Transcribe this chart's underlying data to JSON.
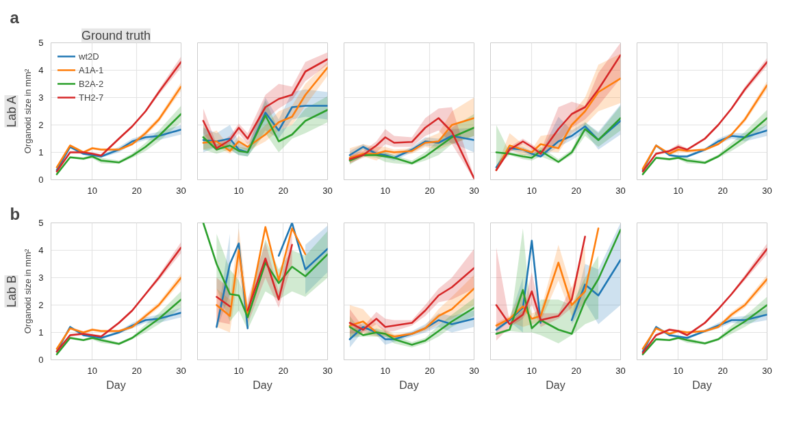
{
  "chart_data": [
    {
      "type": "line",
      "title": "Ground truth",
      "ylabel": "Organoid size in mm²",
      "annotations": [
        "a",
        "Lab A"
      ],
      "legend": "top left",
      "grid": true,
      "xlim": [
        0.7,
        30
      ],
      "ylim": [
        0,
        5
      ],
      "xticks": [
        10,
        20,
        30
      ],
      "yticks": [
        0,
        1,
        2,
        3,
        4,
        5
      ],
      "x": [
        2,
        5,
        8,
        10,
        12,
        16,
        19,
        22,
        25,
        30
      ],
      "series": [
        {
          "name": "wt2D",
          "color": "#1f77b4",
          "values": [
            0.35,
            1.2,
            0.95,
            0.9,
            0.85,
            1.1,
            1.4,
            1.55,
            1.6,
            1.83
          ],
          "lower": [
            0.3,
            1.15,
            0.9,
            0.85,
            0.8,
            1.0,
            1.3,
            1.45,
            1.45,
            1.65
          ],
          "upper": [
            0.4,
            1.25,
            1.0,
            0.95,
            0.9,
            1.2,
            1.5,
            1.65,
            1.75,
            2.0
          ]
        },
        {
          "name": "A1A-1",
          "color": "#ff7f0e",
          "values": [
            0.45,
            1.25,
            1.0,
            1.15,
            1.1,
            1.1,
            1.3,
            1.7,
            2.2,
            3.4
          ],
          "lower": [
            0.4,
            1.2,
            0.95,
            1.1,
            1.05,
            1.05,
            1.25,
            1.6,
            2.1,
            3.25
          ],
          "upper": [
            0.5,
            1.3,
            1.05,
            1.2,
            1.15,
            1.15,
            1.35,
            1.8,
            2.3,
            3.55
          ]
        },
        {
          "name": "B2A-2",
          "color": "#2ca02c",
          "values": [
            0.2,
            0.82,
            0.77,
            0.85,
            0.7,
            0.63,
            0.88,
            1.2,
            1.6,
            2.4
          ],
          "lower": [
            0.15,
            0.78,
            0.72,
            0.78,
            0.6,
            0.58,
            0.8,
            1.05,
            1.4,
            2.1
          ],
          "upper": [
            0.25,
            0.86,
            0.82,
            0.92,
            0.8,
            0.7,
            0.96,
            1.35,
            1.8,
            2.7
          ]
        },
        {
          "name": "TH2-7",
          "color": "#d62728",
          "values": [
            0.3,
            1.0,
            1.0,
            0.95,
            0.88,
            1.5,
            1.95,
            2.5,
            3.2,
            4.3
          ],
          "lower": [
            0.25,
            0.95,
            0.95,
            0.9,
            0.83,
            1.45,
            1.9,
            2.45,
            3.1,
            4.1
          ],
          "upper": [
            0.35,
            1.05,
            1.05,
            1.0,
            0.93,
            1.55,
            2.0,
            2.55,
            3.3,
            4.5
          ]
        }
      ]
    },
    {
      "type": "line",
      "grid": true,
      "tick_labels": "x",
      "xlim": [
        0.7,
        30
      ],
      "ylim": [
        0,
        5
      ],
      "xticks": [
        10,
        20,
        30
      ],
      "yticks": [
        0,
        1,
        2,
        3,
        4,
        5
      ],
      "x": [
        2,
        5,
        8,
        10,
        12,
        16,
        19,
        22,
        25,
        30
      ],
      "series": [
        {
          "color": "#1f77b4",
          "values": [
            1.45,
            1.4,
            1.5,
            1.1,
            1.0,
            2.45,
            1.8,
            2.65,
            2.7,
            2.7
          ],
          "lower": [
            1.0,
            1.2,
            1.1,
            0.9,
            0.85,
            1.8,
            1.5,
            2.2,
            2.3,
            2.2
          ],
          "upper": [
            1.9,
            1.7,
            2.0,
            1.4,
            1.2,
            3.0,
            2.2,
            3.2,
            3.3,
            3.2
          ]
        },
        {
          "color": "#ff7f0e",
          "values": [
            1.35,
            1.4,
            1.05,
            1.4,
            1.2,
            1.65,
            2.1,
            2.3,
            3.1,
            4.1
          ],
          "lower": [
            1.1,
            1.2,
            0.95,
            1.2,
            1.05,
            1.4,
            1.8,
            2.0,
            2.7,
            3.8
          ],
          "upper": [
            1.6,
            1.8,
            1.2,
            1.6,
            1.35,
            2.0,
            2.5,
            2.7,
            3.5,
            4.3
          ]
        },
        {
          "color": "#2ca02c",
          "values": [
            1.55,
            1.1,
            1.25,
            1.05,
            1.0,
            2.35,
            1.4,
            1.65,
            2.15,
            2.55
          ],
          "lower": [
            1.1,
            0.95,
            1.1,
            0.9,
            0.85,
            1.7,
            1.0,
            1.5,
            1.7,
            2.1
          ],
          "upper": [
            2.0,
            1.3,
            1.4,
            1.2,
            1.15,
            2.9,
            1.8,
            2.0,
            2.6,
            3.05
          ]
        },
        {
          "color": "#d62728",
          "values": [
            2.15,
            1.15,
            1.45,
            1.9,
            1.5,
            2.65,
            2.95,
            3.1,
            3.95,
            4.4
          ],
          "lower": [
            1.7,
            1.05,
            1.3,
            1.7,
            1.3,
            2.2,
            2.6,
            2.9,
            3.6,
            4.2
          ],
          "upper": [
            2.6,
            1.3,
            1.6,
            2.05,
            1.7,
            3.1,
            3.5,
            3.4,
            4.3,
            4.65
          ]
        }
      ]
    },
    {
      "type": "line",
      "grid": true,
      "tick_labels": "x",
      "xlim": [
        0.7,
        30
      ],
      "ylim": [
        0,
        5
      ],
      "xticks": [
        10,
        20,
        30
      ],
      "yticks": [
        0,
        1,
        2,
        3,
        4,
        5
      ],
      "x": [
        2,
        5,
        8,
        10,
        12,
        16,
        19,
        22,
        25,
        30
      ],
      "series": [
        {
          "color": "#1f77b4",
          "values": [
            0.9,
            1.2,
            0.95,
            0.9,
            0.8,
            1.1,
            1.4,
            1.35,
            1.6,
            1.45
          ],
          "lower": [
            0.7,
            1.1,
            0.85,
            0.8,
            0.7,
            1.0,
            1.25,
            1.2,
            1.35,
            1.0
          ],
          "upper": [
            1.05,
            1.3,
            1.05,
            1.0,
            0.9,
            1.2,
            1.55,
            1.5,
            1.85,
            1.9
          ]
        },
        {
          "color": "#ff7f0e",
          "values": [
            0.8,
            0.95,
            0.95,
            1.05,
            1.0,
            1.05,
            1.35,
            1.4,
            2.0,
            2.25
          ],
          "lower": [
            0.6,
            0.85,
            0.7,
            0.9,
            0.9,
            0.95,
            1.2,
            1.1,
            1.3,
            1.6
          ],
          "upper": [
            1.15,
            1.3,
            1.2,
            1.2,
            1.1,
            1.15,
            1.5,
            1.7,
            2.5,
            3.0
          ]
        },
        {
          "color": "#2ca02c",
          "values": [
            0.7,
            0.9,
            0.9,
            0.85,
            0.8,
            0.6,
            0.85,
            1.2,
            1.55,
            1.9
          ],
          "lower": [
            0.55,
            0.85,
            0.8,
            0.65,
            0.6,
            0.55,
            0.7,
            0.9,
            1.3,
            1.6
          ],
          "upper": [
            0.85,
            0.95,
            1.0,
            1.0,
            0.9,
            0.7,
            1.0,
            1.45,
            1.9,
            2.4
          ]
        },
        {
          "color": "#d62728",
          "values": [
            0.75,
            0.9,
            1.25,
            1.55,
            1.35,
            1.38,
            1.9,
            2.25,
            1.75,
            0.05
          ],
          "lower": [
            0.6,
            0.8,
            1.0,
            1.3,
            1.2,
            1.2,
            1.6,
            1.8,
            1.3,
            0.0
          ],
          "upper": [
            0.9,
            1.05,
            1.4,
            1.85,
            1.6,
            1.55,
            2.25,
            2.6,
            2.65,
            0.1
          ]
        }
      ]
    },
    {
      "type": "line",
      "grid": true,
      "tick_labels": "x",
      "xlim": [
        0.7,
        30
      ],
      "ylim": [
        0,
        5
      ],
      "xticks": [
        10,
        20,
        30
      ],
      "yticks": [
        0,
        1,
        2,
        3,
        4,
        5
      ],
      "x": [
        2,
        5,
        8,
        10,
        12,
        16,
        19,
        22,
        25,
        30
      ],
      "series": [
        {
          "color": "#1f77b4",
          "values": [
            0.45,
            1.15,
            1.1,
            0.95,
            0.85,
            1.4,
            1.6,
            1.95,
            1.45,
            2.15
          ],
          "lower": [
            0.4,
            1.05,
            1.0,
            0.85,
            0.8,
            1.2,
            1.45,
            1.75,
            1.1,
            1.65
          ],
          "upper": [
            0.5,
            1.25,
            1.2,
            1.05,
            0.95,
            2.3,
            1.8,
            2.1,
            1.75,
            2.75
          ]
        },
        {
          "color": "#ff7f0e",
          "values": [
            0.35,
            1.25,
            1.1,
            1.0,
            1.3,
            1.15,
            2.0,
            2.5,
            3.2,
            3.7
          ],
          "lower": [
            0.3,
            1.1,
            0.9,
            0.9,
            1.05,
            1.0,
            1.7,
            2.0,
            2.5,
            2.8
          ],
          "upper": [
            0.45,
            1.7,
            1.3,
            1.1,
            1.6,
            1.7,
            2.4,
            3.0,
            4.2,
            4.6
          ]
        },
        {
          "color": "#2ca02c",
          "values": [
            1.0,
            0.95,
            0.85,
            0.8,
            1.05,
            0.65,
            1.0,
            1.85,
            1.45,
            2.25
          ],
          "lower": [
            0.5,
            0.9,
            0.75,
            0.7,
            0.85,
            0.6,
            0.9,
            1.6,
            1.2,
            1.8
          ],
          "upper": [
            2.0,
            1.0,
            0.95,
            0.9,
            1.2,
            0.75,
            1.1,
            2.1,
            1.7,
            2.7
          ]
        },
        {
          "color": "#d62728",
          "values": [
            0.35,
            1.1,
            1.4,
            1.2,
            0.95,
            1.85,
            2.4,
            2.65,
            3.3,
            4.55
          ],
          "lower": [
            0.3,
            1.0,
            1.3,
            1.1,
            0.85,
            1.4,
            1.9,
            2.2,
            2.7,
            3.7
          ],
          "upper": [
            0.4,
            1.2,
            1.5,
            1.3,
            1.05,
            2.65,
            2.85,
            2.7,
            3.9,
            5.0
          ]
        }
      ]
    },
    {
      "type": "line",
      "grid": true,
      "tick_labels": "x",
      "xlim": [
        0.7,
        30
      ],
      "ylim": [
        0,
        5
      ],
      "xticks": [
        10,
        20,
        30
      ],
      "yticks": [
        0,
        1,
        2,
        3,
        4,
        5
      ],
      "x": [
        2,
        5,
        8,
        10,
        12,
        16,
        19,
        22,
        25,
        30
      ],
      "series": [
        {
          "color": "#1f77b4",
          "values": [
            0.35,
            1.25,
            0.9,
            0.85,
            0.85,
            1.1,
            1.4,
            1.6,
            1.55,
            1.8
          ],
          "lower": [
            0.3,
            1.2,
            0.85,
            0.8,
            0.8,
            1.05,
            1.3,
            1.5,
            1.4,
            1.6
          ],
          "upper": [
            0.4,
            1.3,
            0.95,
            0.9,
            0.9,
            1.15,
            1.5,
            1.7,
            1.7,
            2.0
          ]
        },
        {
          "color": "#ff7f0e",
          "values": [
            0.4,
            1.25,
            0.95,
            1.1,
            1.05,
            1.1,
            1.3,
            1.65,
            2.2,
            3.45
          ],
          "lower": [
            0.35,
            1.2,
            0.9,
            1.0,
            1.0,
            1.05,
            1.25,
            1.6,
            2.1,
            3.3
          ],
          "upper": [
            0.45,
            1.3,
            1.0,
            1.2,
            1.1,
            1.15,
            1.35,
            1.7,
            2.3,
            3.6
          ]
        },
        {
          "color": "#2ca02c",
          "values": [
            0.2,
            0.8,
            0.75,
            0.8,
            0.7,
            0.62,
            0.85,
            1.2,
            1.55,
            2.25
          ],
          "lower": [
            0.15,
            0.75,
            0.7,
            0.75,
            0.6,
            0.57,
            0.8,
            1.05,
            1.35,
            2.0
          ],
          "upper": [
            0.25,
            0.85,
            0.8,
            0.85,
            0.8,
            0.68,
            0.92,
            1.35,
            1.75,
            2.55
          ]
        },
        {
          "color": "#d62728",
          "values": [
            0.3,
            0.95,
            1.05,
            1.2,
            1.1,
            1.5,
            2.0,
            2.6,
            3.3,
            4.3
          ],
          "lower": [
            0.25,
            0.9,
            1.0,
            1.1,
            1.05,
            1.45,
            1.95,
            2.55,
            3.2,
            4.15
          ],
          "upper": [
            0.35,
            1.0,
            1.1,
            1.3,
            1.15,
            1.55,
            2.05,
            2.65,
            3.4,
            4.45
          ]
        }
      ]
    },
    {
      "type": "line",
      "xlabel": "Day",
      "ylabel": "Organoid size in mm²",
      "annotations": [
        "b",
        "Lab B"
      ],
      "grid": true,
      "xlim": [
        0.7,
        30
      ],
      "ylim": [
        0,
        5
      ],
      "xticks": [
        10,
        20,
        30
      ],
      "yticks": [
        0,
        1,
        2,
        3,
        4,
        5
      ],
      "x": [
        2,
        5,
        8,
        10,
        12,
        16,
        19,
        22,
        25,
        30
      ],
      "series": [
        {
          "color": "#1f77b4",
          "values": [
            0.3,
            1.2,
            0.9,
            0.85,
            0.8,
            1.0,
            1.25,
            1.45,
            1.5,
            1.72
          ],
          "lower": [
            0.25,
            1.15,
            0.85,
            0.8,
            0.75,
            0.95,
            1.15,
            1.35,
            1.35,
            1.55
          ],
          "upper": [
            0.35,
            1.25,
            0.95,
            0.9,
            0.85,
            1.05,
            1.35,
            1.55,
            1.65,
            1.9
          ]
        },
        {
          "color": "#ff7f0e",
          "values": [
            0.4,
            1.15,
            1.0,
            1.1,
            1.05,
            1.05,
            1.2,
            1.6,
            2.0,
            3.0
          ],
          "lower": [
            0.35,
            1.1,
            0.95,
            1.05,
            1.0,
            1.0,
            1.15,
            1.5,
            1.9,
            2.85
          ],
          "upper": [
            0.45,
            1.2,
            1.05,
            1.15,
            1.1,
            1.1,
            1.25,
            1.7,
            2.1,
            3.15
          ]
        },
        {
          "color": "#2ca02c",
          "values": [
            0.2,
            0.8,
            0.72,
            0.8,
            0.72,
            0.58,
            0.8,
            1.15,
            1.5,
            2.2
          ],
          "lower": [
            0.15,
            0.75,
            0.68,
            0.74,
            0.62,
            0.54,
            0.75,
            1.0,
            1.3,
            1.9
          ],
          "upper": [
            0.25,
            0.85,
            0.76,
            0.86,
            0.8,
            0.64,
            0.85,
            1.3,
            1.7,
            2.5
          ]
        },
        {
          "color": "#d62728",
          "values": [
            0.3,
            0.9,
            0.95,
            0.9,
            0.85,
            1.35,
            1.8,
            2.4,
            3.0,
            4.1
          ],
          "lower": [
            0.25,
            0.85,
            0.9,
            0.85,
            0.8,
            1.3,
            1.75,
            2.35,
            2.9,
            3.9
          ],
          "upper": [
            0.35,
            0.95,
            1.0,
            0.95,
            0.9,
            1.4,
            1.85,
            2.45,
            3.1,
            4.3
          ]
        }
      ]
    },
    {
      "type": "line",
      "xlabel": "Day",
      "grid": true,
      "tick_labels": "x",
      "xlim": [
        0.7,
        30
      ],
      "ylim": [
        0,
        5
      ],
      "xticks": [
        10,
        20,
        30
      ],
      "yticks": [
        0,
        1,
        2,
        3,
        4,
        5
      ],
      "x": [
        2,
        5,
        8,
        10,
        12,
        16,
        19,
        22,
        25,
        30
      ],
      "series": [
        {
          "color": "#1f77b4",
          "values": [
            null,
            1.2,
            3.5,
            4.25,
            1.15,
            null,
            3.8,
            5.0,
            3.3,
            4.05
          ],
          "lower": [
            null,
            1.1,
            2.4,
            null,
            null,
            null,
            null,
            null,
            2.4,
            3.2
          ],
          "upper": [
            null,
            1.3,
            4.6,
            null,
            null,
            null,
            null,
            null,
            4.2,
            4.9
          ]
        },
        {
          "color": "#ff7f0e",
          "values": [
            null,
            2.0,
            1.6,
            4.0,
            1.6,
            4.85,
            2.9,
            4.8,
            3.85,
            null
          ],
          "lower": [
            null,
            1.2,
            1.0,
            3.2,
            1.2,
            null,
            null,
            null,
            null,
            null
          ],
          "upper": [
            null,
            2.6,
            2.2,
            4.8,
            2.0,
            null,
            null,
            null,
            null,
            null
          ]
        },
        {
          "color": "#2ca02c",
          "values": [
            5.0,
            3.5,
            2.4,
            2.35,
            1.55,
            3.55,
            2.8,
            3.4,
            3.05,
            3.85
          ],
          "lower": [
            null,
            2.6,
            1.4,
            1.8,
            1.1,
            2.5,
            2.2,
            2.5,
            2.3,
            3.0
          ],
          "upper": [
            null,
            4.6,
            3.3,
            2.9,
            2.0,
            4.4,
            3.3,
            4.0,
            3.8,
            4.7
          ]
        },
        {
          "color": "#d62728",
          "values": [
            null,
            2.3,
            1.95,
            null,
            1.8,
            3.7,
            2.2,
            4.2,
            null,
            null
          ],
          "lower": [
            null,
            1.4,
            1.3,
            null,
            1.3,
            3.0,
            1.9,
            3.5,
            null,
            null
          ],
          "upper": [
            null,
            3.0,
            2.6,
            null,
            2.2,
            4.3,
            2.5,
            4.9,
            null,
            null
          ]
        }
      ]
    },
    {
      "type": "line",
      "xlabel": "Day",
      "grid": true,
      "tick_labels": "x",
      "xlim": [
        0.7,
        30
      ],
      "ylim": [
        0,
        5
      ],
      "xticks": [
        10,
        20,
        30
      ],
      "yticks": [
        0,
        1,
        2,
        3,
        4,
        5
      ],
      "x": [
        2,
        5,
        8,
        10,
        12,
        16,
        19,
        22,
        25,
        30
      ],
      "series": [
        {
          "color": "#1f77b4",
          "values": [
            0.75,
            1.2,
            1.0,
            0.75,
            0.75,
            0.95,
            1.15,
            1.45,
            1.3,
            1.5
          ],
          "lower": [
            0.45,
            1.05,
            0.9,
            0.55,
            0.65,
            0.85,
            1.0,
            1.2,
            1.0,
            1.2
          ],
          "upper": [
            1.05,
            1.35,
            1.1,
            0.95,
            0.85,
            1.05,
            1.3,
            1.7,
            1.6,
            1.8
          ]
        },
        {
          "color": "#ff7f0e",
          "values": [
            1.25,
            1.4,
            1.0,
            0.95,
            0.85,
            0.95,
            1.15,
            1.6,
            1.85,
            2.6
          ],
          "lower": [
            0.8,
            0.95,
            0.85,
            0.85,
            0.75,
            0.9,
            1.05,
            1.3,
            1.5,
            2.0
          ],
          "upper": [
            2.0,
            1.85,
            1.3,
            1.1,
            0.95,
            1.0,
            1.25,
            1.85,
            2.3,
            3.1
          ]
        },
        {
          "color": "#2ca02c",
          "values": [
            1.2,
            0.9,
            1.0,
            0.95,
            0.75,
            0.55,
            0.7,
            1.05,
            1.4,
            1.9
          ],
          "lower": [
            0.8,
            0.85,
            0.85,
            0.85,
            0.6,
            0.45,
            0.6,
            0.85,
            1.2,
            1.6
          ],
          "upper": [
            1.6,
            0.95,
            1.15,
            1.05,
            0.9,
            0.65,
            0.8,
            1.25,
            1.65,
            2.25
          ]
        },
        {
          "color": "#d62728",
          "values": [
            1.35,
            1.1,
            1.5,
            1.2,
            1.25,
            1.35,
            1.8,
            2.35,
            2.65,
            3.35
          ],
          "lower": [
            0.95,
            1.0,
            1.3,
            1.0,
            1.05,
            1.25,
            1.6,
            2.1,
            2.2,
            2.6
          ],
          "upper": [
            1.85,
            1.2,
            1.75,
            1.5,
            1.45,
            1.45,
            2.0,
            2.6,
            3.0,
            4.05
          ]
        }
      ]
    },
    {
      "type": "line",
      "xlabel": "Day",
      "grid": true,
      "tick_labels": "x",
      "xlim": [
        0.7,
        30
      ],
      "ylim": [
        0,
        5
      ],
      "xticks": [
        10,
        20,
        30
      ],
      "yticks": [
        0,
        1,
        2,
        3,
        4,
        5
      ],
      "x": [
        2,
        5,
        8,
        10,
        12,
        16,
        19,
        22,
        25,
        30
      ],
      "series": [
        {
          "color": "#1f77b4",
          "values": [
            1.1,
            1.45,
            1.9,
            4.35,
            1.35,
            null,
            1.45,
            2.75,
            2.35,
            3.65
          ],
          "lower": [
            1.0,
            1.4,
            1.0,
            null,
            null,
            null,
            1.3,
            2.1,
            1.3,
            2.0
          ],
          "upper": [
            1.2,
            1.5,
            3.0,
            null,
            null,
            null,
            1.6,
            3.5,
            3.3,
            5.0
          ]
        },
        {
          "color": "#ff7f0e",
          "values": [
            1.25,
            1.5,
            1.95,
            1.5,
            1.6,
            3.55,
            2.0,
            2.5,
            4.8,
            null
          ],
          "lower": [
            1.15,
            1.4,
            1.2,
            1.3,
            1.4,
            2.9,
            1.6,
            2.1,
            null,
            null
          ],
          "upper": [
            1.35,
            1.6,
            2.6,
            1.7,
            1.8,
            4.2,
            2.6,
            4.2,
            null,
            null
          ]
        },
        {
          "color": "#2ca02c",
          "values": [
            0.95,
            1.1,
            2.55,
            1.15,
            1.45,
            1.1,
            0.95,
            2.15,
            2.95,
            4.75
          ],
          "lower": [
            0.9,
            1.05,
            1.0,
            1.0,
            0.9,
            0.6,
            0.9,
            1.3,
            1.5,
            null
          ],
          "upper": [
            1.0,
            1.15,
            4.8,
            1.4,
            2.2,
            2.2,
            2.0,
            3.0,
            3.8,
            null
          ]
        },
        {
          "color": "#d62728",
          "values": [
            2.0,
            1.3,
            1.65,
            2.5,
            1.45,
            1.6,
            2.2,
            4.5,
            null,
            null
          ],
          "lower": [
            0.7,
            1.2,
            1.5,
            2.0,
            1.2,
            1.5,
            1.9,
            null,
            null,
            null
          ],
          "upper": [
            4.1,
            1.4,
            1.8,
            3.2,
            1.7,
            1.7,
            2.7,
            null,
            null,
            null
          ]
        }
      ]
    },
    {
      "type": "line",
      "xlabel": "Day",
      "grid": true,
      "tick_labels": "x",
      "xlim": [
        0.7,
        30
      ],
      "ylim": [
        0,
        5
      ],
      "xticks": [
        10,
        20,
        30
      ],
      "yticks": [
        0,
        1,
        2,
        3,
        4,
        5
      ],
      "x": [
        2,
        5,
        8,
        10,
        12,
        16,
        19,
        22,
        25,
        30
      ],
      "series": [
        {
          "color": "#1f77b4",
          "values": [
            0.3,
            1.2,
            0.9,
            0.85,
            0.8,
            1.05,
            1.25,
            1.45,
            1.45,
            1.65
          ],
          "lower": [
            0.25,
            1.15,
            0.85,
            0.8,
            0.75,
            1.0,
            1.15,
            1.35,
            1.3,
            1.45
          ],
          "upper": [
            0.35,
            1.25,
            0.95,
            0.9,
            0.85,
            1.1,
            1.35,
            1.55,
            1.6,
            1.85
          ]
        },
        {
          "color": "#ff7f0e",
          "values": [
            0.4,
            1.15,
            0.95,
            1.05,
            1.0,
            1.05,
            1.2,
            1.65,
            2.0,
            2.95
          ],
          "lower": [
            0.35,
            1.1,
            0.9,
            1.0,
            0.95,
            1.0,
            1.15,
            1.55,
            1.9,
            2.8
          ],
          "upper": [
            0.45,
            1.2,
            1.0,
            1.1,
            1.05,
            1.1,
            1.25,
            1.75,
            2.1,
            3.1
          ]
        },
        {
          "color": "#2ca02c",
          "values": [
            0.2,
            0.75,
            0.72,
            0.8,
            0.72,
            0.6,
            0.75,
            1.1,
            1.4,
            2.0
          ],
          "lower": [
            0.15,
            0.7,
            0.68,
            0.75,
            0.62,
            0.55,
            0.7,
            0.95,
            1.2,
            1.7
          ],
          "upper": [
            0.25,
            0.8,
            0.76,
            0.85,
            0.8,
            0.65,
            0.8,
            1.25,
            1.6,
            2.3
          ]
        },
        {
          "color": "#d62728",
          "values": [
            0.25,
            0.9,
            1.1,
            1.05,
            0.9,
            1.35,
            1.85,
            2.4,
            3.0,
            4.05
          ],
          "lower": [
            0.2,
            0.85,
            1.05,
            1.0,
            0.85,
            1.3,
            1.8,
            2.35,
            2.9,
            3.85
          ],
          "upper": [
            0.3,
            0.95,
            1.15,
            1.1,
            0.95,
            1.4,
            1.9,
            2.45,
            3.1,
            4.25
          ]
        }
      ]
    }
  ]
}
